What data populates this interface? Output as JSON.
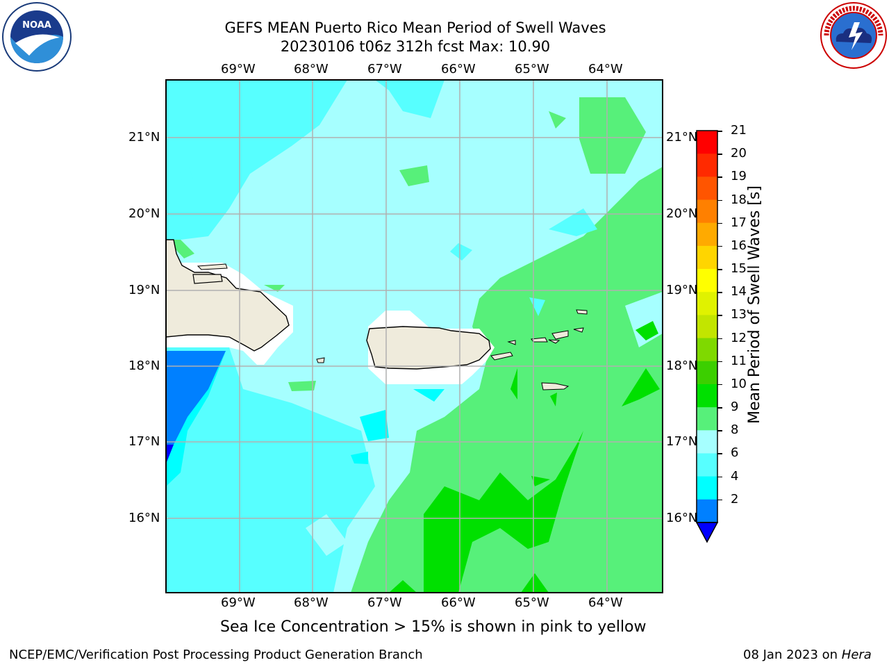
{
  "title": {
    "line1": "GEFS MEAN Puerto Rico Mean Period of Swell Waves",
    "line2": "20230106 t06z 312h fcst   Max: 10.90"
  },
  "logos": {
    "noaa_text": "NOAA",
    "nws_text": "NATIONAL WEATHER SERVICE"
  },
  "map": {
    "lon_labels": [
      "69°W",
      "68°W",
      "67°W",
      "66°W",
      "65°W",
      "64°W"
    ],
    "lat_labels": [
      "21°N",
      "20°N",
      "19°N",
      "18°N",
      "17°N",
      "16°N"
    ]
  },
  "colorbar": {
    "label": "Mean Period of Swell Waves [s]",
    "ticks": [
      "21",
      "20",
      "19",
      "18",
      "17",
      "16",
      "15",
      "14",
      "13",
      "12",
      "11",
      "10",
      "9",
      "8",
      "6",
      "4",
      "2"
    ],
    "colors": [
      "#ff0000",
      "#ff2a00",
      "#ff5500",
      "#ff8000",
      "#ffaa00",
      "#ffd500",
      "#ffff00",
      "#e0f200",
      "#c2e500",
      "#7fd900",
      "#3ccf00",
      "#00e000",
      "#57f07a",
      "#a6ffff",
      "#57ffff",
      "#00ffff",
      "#0080ff"
    ],
    "extend_color": "#0000ff"
  },
  "note": "Sea Ice Concentration > 15% is shown in pink to yellow",
  "footer": {
    "left": "NCEP/EMC/Verification Post Processing Product Generation Branch",
    "right_prefix": "08 Jan 2023 on ",
    "right_machine": "Hera"
  }
}
